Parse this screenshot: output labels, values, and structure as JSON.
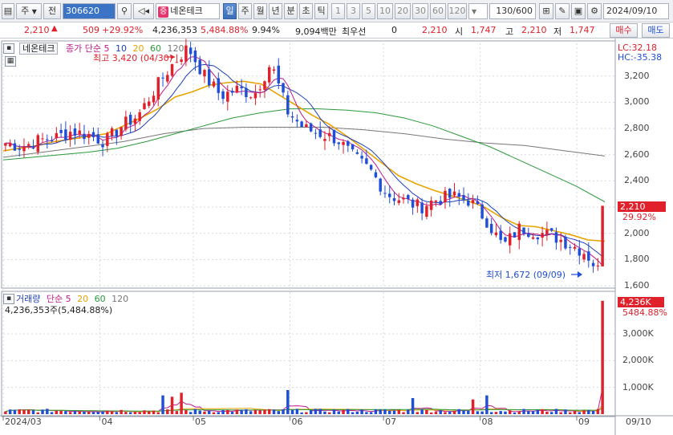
{
  "toolbar": {
    "market_select": "주",
    "market_arrow": "▼",
    "board_select": "전",
    "stock_code": "306620",
    "stock_badge": "증",
    "stock_name": "네온테크",
    "period_tabs": [
      "일",
      "주",
      "월",
      "년",
      "분",
      "초",
      "틱"
    ],
    "interval_buttons": [
      "1",
      "3",
      "5",
      "10",
      "20",
      "30",
      "60",
      "120"
    ],
    "count_value": "130/600",
    "date_value": "2024/09/10"
  },
  "quote": {
    "price": "2,210",
    "change": "509",
    "change_pct": "+29.92%",
    "volume": "4,236,353",
    "volume_ratio": "5,484.88%",
    "turnover": "9.94%",
    "amount": "9,094백만",
    "best_bid_label": "최우선",
    "best_bid_value": "0",
    "last_price": "2,210",
    "open_label": "시",
    "open_value": "1,747",
    "high_label": "고",
    "high_value": "2,210",
    "low_label": "저",
    "low_value": "1,747",
    "buy_label": "매수",
    "sell_label": "매도"
  },
  "price_panel": {
    "title": "네온테크",
    "legend_prefix": "종가 단순",
    "ma_periods": [
      "5",
      "10",
      "20",
      "60",
      "120"
    ],
    "lc_label": "LC:32.18",
    "hc_label": "HC:-35.38",
    "high_annotation": "최고 3,420 (04/30)",
    "low_annotation": "최저 1,672 (09/09)",
    "current_price_tag": "2,210",
    "current_change_tag": "29.92%",
    "y_ticks": [
      "3,200",
      "3,000",
      "2,800",
      "2,600",
      "2,400",
      "2,200",
      "2,000",
      "1,800",
      "1,600"
    ]
  },
  "volume_panel": {
    "title": "거래량",
    "legend_prefix": "단순",
    "ma_periods": [
      "5",
      "20",
      "60",
      "120"
    ],
    "volume_value": "4,236,353주(5,484.88%)",
    "current_tag": "4,236K",
    "current_ratio_tag": "5484.88%",
    "y_ticks": [
      "3,000K",
      "2,000K",
      "1,000K"
    ]
  },
  "x_axis": {
    "labels": [
      "2024/03",
      "04",
      "05",
      "06",
      "07",
      "08",
      "09",
      "09/10"
    ]
  },
  "colors": {
    "up": "#e0202a",
    "down": "#1f4ed8",
    "ma5": "#c01a8c",
    "ma10": "#1f3fb8",
    "ma20": "#e8a400",
    "ma60": "#2a9a3a",
    "ma120": "#777777"
  },
  "chart_data": {
    "type": "candlestick",
    "x_range": [
      "2024-03-01",
      "2024-09-10"
    ],
    "ylim": [
      1600,
      3450
    ],
    "volume_ylim": [
      0,
      4500000
    ],
    "ohlc_path": [
      2690,
      2660,
      2710,
      2730,
      2780,
      2750,
      2700,
      2820,
      2900,
      3100,
      3280,
      3420,
      3200,
      3050,
      3100,
      3060,
      3300,
      2930,
      2800,
      2760,
      2720,
      2580,
      2480,
      2300,
      2250,
      2200,
      2260,
      2280,
      2250,
      2100,
      1900,
      2040,
      2010,
      1980,
      1920,
      1850,
      1672,
      2210
    ],
    "last_candle": {
      "open": 1747,
      "high": 2210,
      "low": 1747,
      "close": 2210
    },
    "ma20": [
      2630,
      2650,
      2670,
      2700,
      2720,
      2740,
      2760,
      2820,
      2880,
      2950,
      3040,
      3080,
      3130,
      3150,
      3160,
      3140,
      3060,
      2980,
      2900,
      2830,
      2740,
      2640,
      2540,
      2440,
      2380,
      2330,
      2290,
      2250,
      2200,
      2120,
      2060,
      2050,
      2020,
      1990,
      1950,
      1940
    ],
    "ma60": [
      2560,
      2580,
      2600,
      2620,
      2650,
      2700,
      2760,
      2820,
      2880,
      2920,
      2950,
      2950,
      2940,
      2920,
      2880,
      2820,
      2740,
      2660,
      2560,
      2460,
      2360,
      2240
    ],
    "ma120": [
      2580,
      2620,
      2660,
      2700,
      2760,
      2800,
      2810,
      2810,
      2810,
      2790,
      2760,
      2720,
      2690,
      2670,
      2630,
      2590
    ],
    "volume_spikes": [
      {
        "date": "2024-04-20",
        "value": 700000
      },
      {
        "date": "2024-04-23",
        "value": 650000
      },
      {
        "date": "2024-04-26",
        "value": 800000
      },
      {
        "date": "2024-05-30",
        "value": 900000
      },
      {
        "date": "2024-07-09",
        "value": 600000
      },
      {
        "date": "2024-07-29",
        "value": 550000
      },
      {
        "date": "2024-08-02",
        "value": 700000
      },
      {
        "date": "2024-09-10",
        "value": 4236353
      }
    ]
  }
}
